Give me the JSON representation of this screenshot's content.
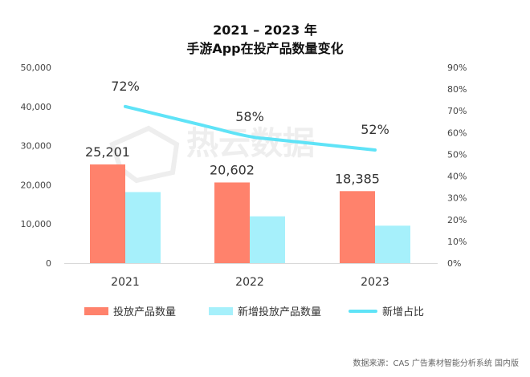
{
  "title_line1": "2021 – 2023 年",
  "title_line2": "手游App在投产品数量变化",
  "watermark": "热云数据",
  "source": "数据来源：CAS 广告素材智能分析系统 国内版",
  "colors": {
    "series1": "#FF826C",
    "series2": "#A6F0FB",
    "line": "#5FE3F7"
  },
  "chart_data": {
    "type": "bar+line",
    "categories": [
      "2021",
      "2022",
      "2023"
    ],
    "series": [
      {
        "name": "投放产品数量",
        "type": "bar",
        "axis": "left",
        "values": [
          25201,
          20602,
          18385
        ],
        "labels": [
          "25,201",
          "20,602",
          "18,385"
        ]
      },
      {
        "name": "新增投放产品数量",
        "type": "bar",
        "axis": "left",
        "values": [
          18145,
          11949,
          9560
        ]
      },
      {
        "name": "新增占比",
        "type": "line",
        "axis": "right",
        "values": [
          72,
          58,
          52
        ],
        "labels": [
          "72%",
          "58%",
          "52%"
        ]
      }
    ],
    "y_left": {
      "range": [
        0,
        50000
      ],
      "ticks": [
        "0",
        "10,000",
        "20,000",
        "30,000",
        "40,000",
        "50,000"
      ]
    },
    "y_right": {
      "range": [
        0,
        90
      ],
      "ticks": [
        "0%",
        "10%",
        "20%",
        "30%",
        "40%",
        "50%",
        "60%",
        "70%",
        "80%",
        "90%"
      ]
    },
    "grid": false,
    "legend": "bottom"
  }
}
